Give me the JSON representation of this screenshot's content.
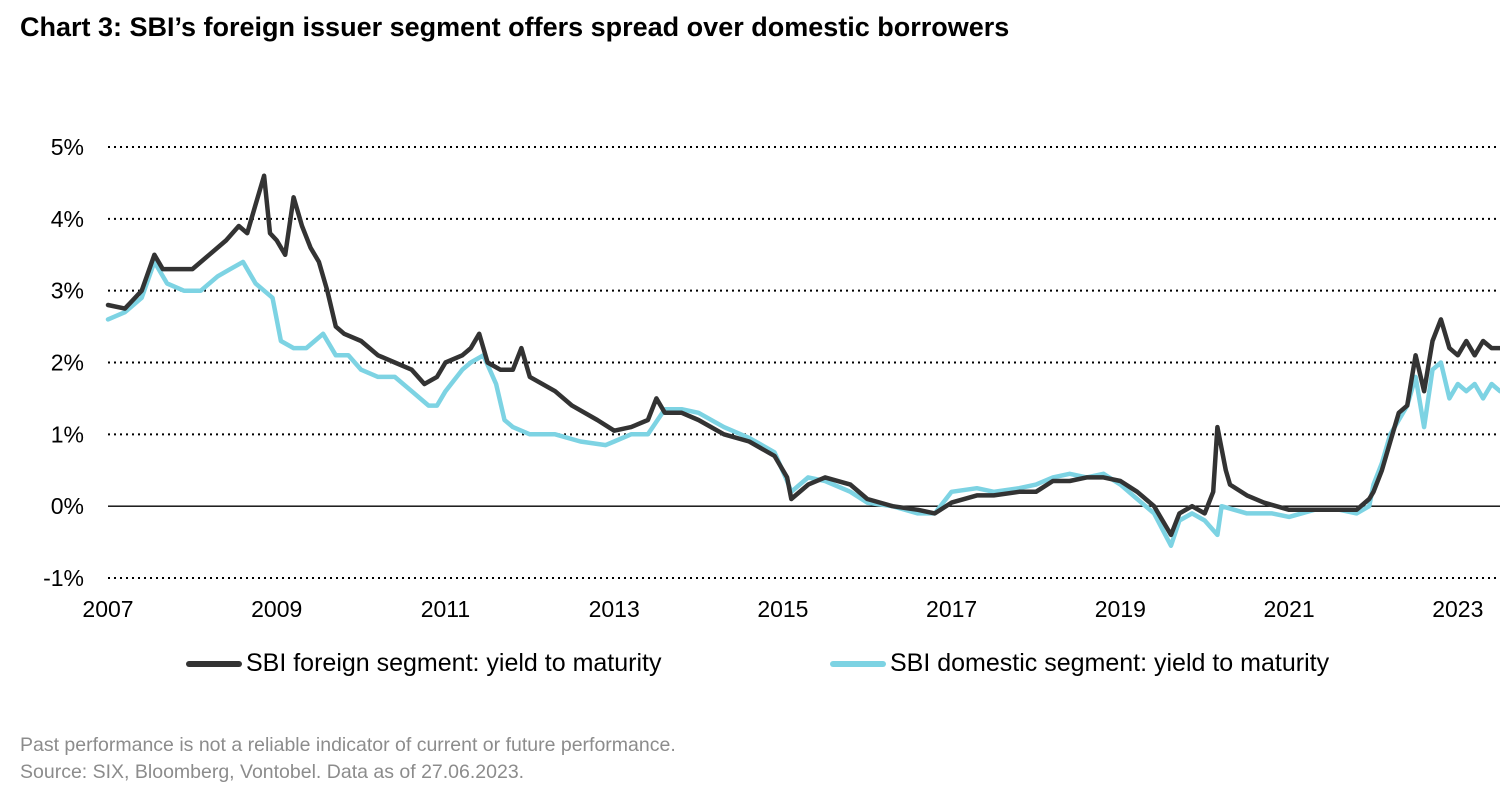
{
  "title": "Chart 3: SBI’s foreign issuer segment offers spread over domestic borrowers",
  "footnote": {
    "disclaimer": "Past performance is not a reliable indicator of current or future performance.",
    "source": "Source: SIX, Bloomberg, Vontobel. Data as of 27.06.2023."
  },
  "chart_data": {
    "type": "line",
    "title": "Chart 3: SBI’s foreign issuer segment offers spread over domestic borrowers",
    "xlabel": "",
    "ylabel": "",
    "xlim": [
      2007.0,
      2023.5
    ],
    "ylim": [
      -1,
      5
    ],
    "grid": "horizontal dotted",
    "legend_position": "bottom",
    "x_ticks": [
      2007,
      2009,
      2011,
      2013,
      2015,
      2017,
      2019,
      2021,
      2023
    ],
    "x_tick_labels": [
      "2007",
      "2009",
      "2011",
      "2013",
      "2015",
      "2017",
      "2019",
      "2021",
      "2023"
    ],
    "y_ticks": [
      -1,
      0,
      1,
      2,
      3,
      4,
      5
    ],
    "y_tick_labels": [
      "-1%",
      "0%",
      "1%",
      "2%",
      "3%",
      "4%",
      "5%"
    ],
    "series": [
      {
        "name": "SBI foreign segment: yield to maturity",
        "color": "#333333",
        "x": [
          2007.0,
          2007.2,
          2007.4,
          2007.55,
          2007.65,
          2007.8,
          2008.0,
          2008.2,
          2008.4,
          2008.55,
          2008.65,
          2008.75,
          2008.85,
          2008.92,
          2009.0,
          2009.1,
          2009.2,
          2009.3,
          2009.4,
          2009.5,
          2009.6,
          2009.7,
          2009.8,
          2010.0,
          2010.2,
          2010.4,
          2010.6,
          2010.75,
          2010.9,
          2011.0,
          2011.2,
          2011.3,
          2011.4,
          2011.5,
          2011.65,
          2011.8,
          2011.9,
          2012.0,
          2012.3,
          2012.5,
          2012.8,
          2013.0,
          2013.2,
          2013.4,
          2013.5,
          2013.6,
          2013.8,
          2014.0,
          2014.3,
          2014.6,
          2014.9,
          2015.05,
          2015.1,
          2015.3,
          2015.5,
          2015.8,
          2016.0,
          2016.3,
          2016.6,
          2016.8,
          2017.0,
          2017.3,
          2017.5,
          2017.8,
          2018.0,
          2018.2,
          2018.4,
          2018.6,
          2018.8,
          2019.0,
          2019.2,
          2019.4,
          2019.6,
          2019.7,
          2019.85,
          2020.0,
          2020.1,
          2020.15,
          2020.2,
          2020.25,
          2020.3,
          2020.5,
          2020.7,
          2021.0,
          2021.3,
          2021.6,
          2021.8,
          2021.95,
          2022.0,
          2022.1,
          2022.2,
          2022.3,
          2022.4,
          2022.5,
          2022.6,
          2022.7,
          2022.8,
          2022.9,
          2023.0,
          2023.1,
          2023.2,
          2023.3,
          2023.4,
          2023.5
        ],
        "values": [
          2.8,
          2.75,
          3.0,
          3.5,
          3.3,
          3.3,
          3.3,
          3.5,
          3.7,
          3.9,
          3.8,
          4.2,
          4.6,
          3.8,
          3.7,
          3.5,
          4.3,
          3.9,
          3.6,
          3.4,
          3.0,
          2.5,
          2.4,
          2.3,
          2.1,
          2.0,
          1.9,
          1.7,
          1.8,
          2.0,
          2.1,
          2.2,
          2.4,
          2.0,
          1.9,
          1.9,
          2.2,
          1.8,
          1.6,
          1.4,
          1.2,
          1.05,
          1.1,
          1.2,
          1.5,
          1.3,
          1.3,
          1.2,
          1.0,
          0.9,
          0.7,
          0.4,
          0.1,
          0.3,
          0.4,
          0.3,
          0.1,
          0.0,
          -0.05,
          -0.1,
          0.05,
          0.15,
          0.15,
          0.2,
          0.2,
          0.35,
          0.35,
          0.4,
          0.4,
          0.35,
          0.2,
          0.0,
          -0.4,
          -0.1,
          0.0,
          -0.1,
          0.2,
          1.1,
          0.8,
          0.5,
          0.3,
          0.15,
          0.05,
          -0.05,
          -0.05,
          -0.05,
          -0.05,
          0.1,
          0.2,
          0.5,
          0.9,
          1.3,
          1.4,
          2.1,
          1.6,
          2.3,
          2.6,
          2.2,
          2.1,
          2.3,
          2.1,
          2.3,
          2.2,
          2.2
        ]
      },
      {
        "name": "SBI domestic segment: yield to maturity",
        "color": "#7dd3e3",
        "x": [
          2007.0,
          2007.2,
          2007.4,
          2007.55,
          2007.7,
          2007.9,
          2008.1,
          2008.3,
          2008.45,
          2008.6,
          2008.75,
          2008.85,
          2008.95,
          2009.05,
          2009.2,
          2009.35,
          2009.45,
          2009.55,
          2009.7,
          2009.85,
          2010.0,
          2010.2,
          2010.4,
          2010.6,
          2010.8,
          2010.9,
          2011.0,
          2011.2,
          2011.3,
          2011.45,
          2011.6,
          2011.7,
          2011.8,
          2012.0,
          2012.3,
          2012.6,
          2012.9,
          2013.0,
          2013.2,
          2013.4,
          2013.6,
          2013.8,
          2014.0,
          2014.3,
          2014.6,
          2014.9,
          2015.05,
          2015.1,
          2015.3,
          2015.5,
          2015.8,
          2016.0,
          2016.3,
          2016.6,
          2016.8,
          2017.0,
          2017.3,
          2017.5,
          2017.8,
          2018.0,
          2018.2,
          2018.4,
          2018.6,
          2018.8,
          2019.0,
          2019.2,
          2019.4,
          2019.6,
          2019.7,
          2019.85,
          2020.0,
          2020.15,
          2020.2,
          2020.35,
          2020.5,
          2020.8,
          2021.0,
          2021.3,
          2021.6,
          2021.8,
          2021.95,
          2022.0,
          2022.1,
          2022.2,
          2022.3,
          2022.4,
          2022.5,
          2022.6,
          2022.7,
          2022.8,
          2022.9,
          2023.0,
          2023.1,
          2023.2,
          2023.3,
          2023.4,
          2023.5
        ],
        "values": [
          2.6,
          2.7,
          2.9,
          3.4,
          3.1,
          3.0,
          3.0,
          3.2,
          3.3,
          3.4,
          3.1,
          3.0,
          2.9,
          2.3,
          2.2,
          2.2,
          2.3,
          2.4,
          2.1,
          2.1,
          1.9,
          1.8,
          1.8,
          1.6,
          1.4,
          1.4,
          1.6,
          1.9,
          2.0,
          2.1,
          1.7,
          1.2,
          1.1,
          1.0,
          1.0,
          0.9,
          0.85,
          0.9,
          1.0,
          1.0,
          1.35,
          1.35,
          1.3,
          1.1,
          0.95,
          0.75,
          0.35,
          0.2,
          0.4,
          0.35,
          0.2,
          0.05,
          0.0,
          -0.1,
          -0.1,
          0.2,
          0.25,
          0.2,
          0.25,
          0.3,
          0.4,
          0.45,
          0.4,
          0.45,
          0.3,
          0.1,
          -0.1,
          -0.55,
          -0.2,
          -0.1,
          -0.2,
          -0.4,
          0.0,
          -0.05,
          -0.1,
          -0.1,
          -0.15,
          -0.05,
          -0.05,
          -0.1,
          0.0,
          0.3,
          0.6,
          1.0,
          1.2,
          1.4,
          1.8,
          1.1,
          1.9,
          2.0,
          1.5,
          1.7,
          1.6,
          1.7,
          1.5,
          1.7,
          1.6
        ]
      }
    ]
  }
}
